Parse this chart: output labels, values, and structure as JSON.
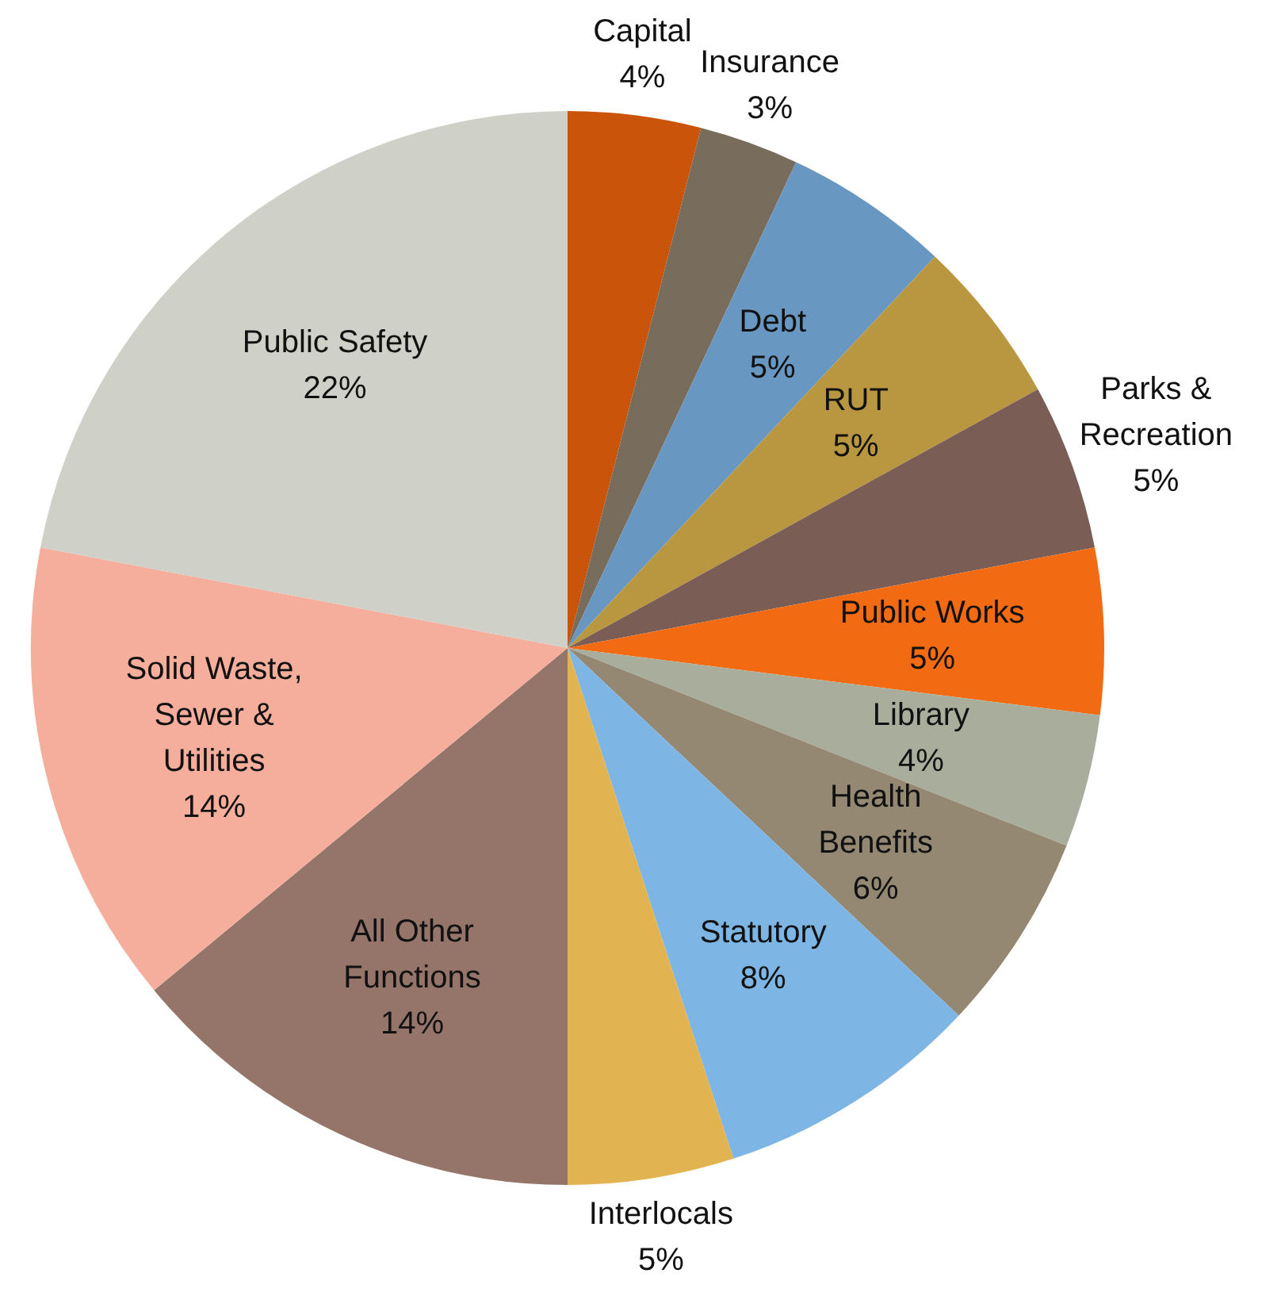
{
  "chart_data": {
    "type": "pie",
    "categories": [
      "Capital",
      "Insurance",
      "Debt",
      "RUT",
      "Parks & Recreation",
      "Public Works",
      "Library",
      "Health Benefits",
      "Statutory",
      "Interlocals",
      "All Other Functions",
      "Solid Waste, Sewer & Utilities",
      "Public Safety"
    ],
    "values": [
      4,
      3,
      5,
      5,
      5,
      5,
      4,
      6,
      8,
      5,
      14,
      14,
      22
    ],
    "value_labels": [
      "4%",
      "3%",
      "5%",
      "5%",
      "5%",
      "5%",
      "4%",
      "6%",
      "8%",
      "5%",
      "14%",
      "14%",
      "22%"
    ],
    "colors": [
      "#c9540a",
      "#786c5c",
      "#6897c2",
      "#b99640",
      "#7a5e56",
      "#f26a11",
      "#a9ae9c",
      "#958872",
      "#7db6e4",
      "#e2b451",
      "#957469",
      "#f5ae9b",
      "#cfd0c7"
    ],
    "legend": false
  }
}
